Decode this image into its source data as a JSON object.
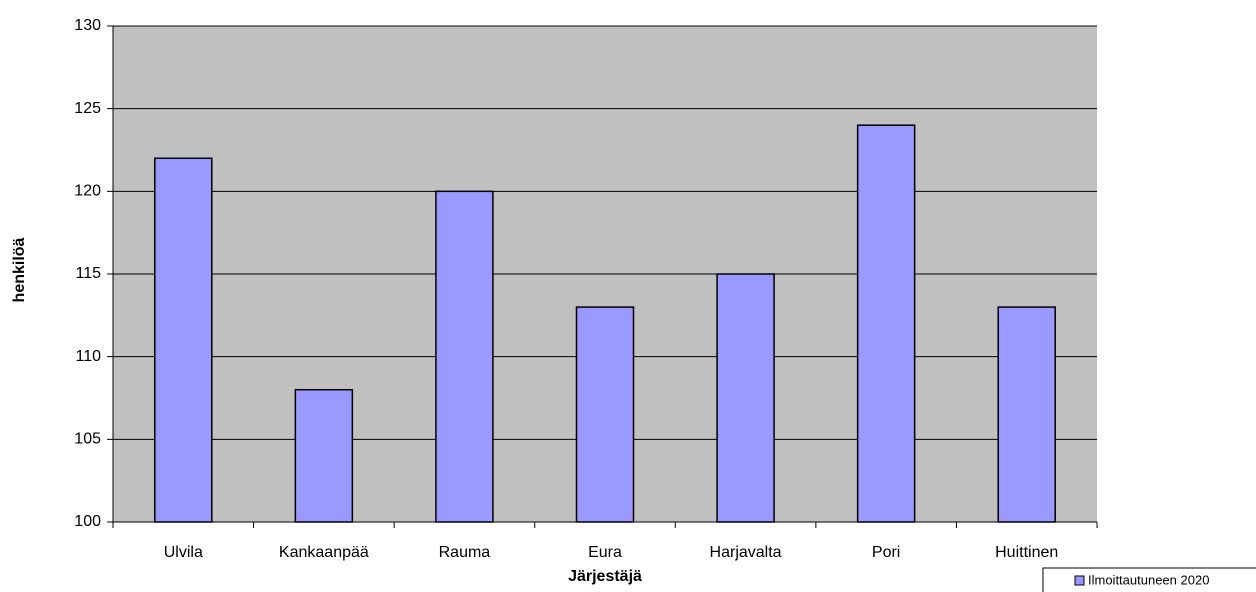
{
  "chart_data": {
    "type": "bar",
    "xlabel": "Järjestäjä",
    "ylabel": "henkilöä",
    "categories": [
      "Ulvila",
      "Kankaanpää",
      "Rauma",
      "Eura",
      "Harjavalta",
      "Pori",
      "Huittinen"
    ],
    "series": [
      {
        "name": "Ilmoittautuneen 2020",
        "color": "#9999ff",
        "values": [
          122,
          108,
          120,
          113,
          115,
          124,
          113
        ]
      }
    ],
    "ylim": [
      100,
      130
    ],
    "yticks": [
      100,
      105,
      110,
      115,
      120,
      125,
      130
    ],
    "grid": true,
    "legend": "bottom-right",
    "plot_background": "#c0c0c0"
  }
}
